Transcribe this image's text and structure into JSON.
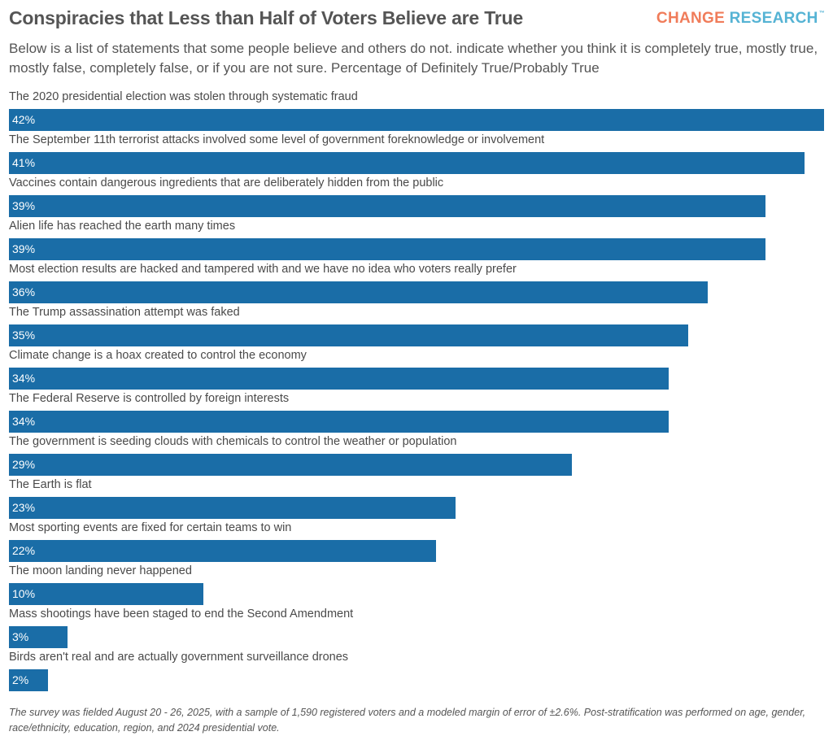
{
  "header": {
    "title": "Conspiracies that Less than Half of Voters Believe are True",
    "logo_word1": "CHANGE",
    "logo_word2": "RESEARCH",
    "logo_tm": "™",
    "subtitle": "Below is a list of statements that some people believe and others do not. indicate whether you think it is completely true, mostly true, mostly false, completely false, or if you are not sure. Percentage of Definitely True/Probably True"
  },
  "chart_data": {
    "type": "bar",
    "orientation": "horizontal",
    "categories": [
      "The 2020 presidential election was stolen through systematic fraud",
      "The September 11th terrorist attacks involved some level of government foreknowledge or involvement",
      "Vaccines contain dangerous ingredients that are deliberately hidden from the public",
      "Alien life has reached the earth many times",
      "Most election results are hacked and tampered with and we have no idea who voters really prefer",
      "The Trump assassination attempt was faked",
      "Climate change is a hoax created to control the economy",
      "The Federal Reserve is controlled by foreign interests",
      "The government is seeding clouds with chemicals to control the weather or population",
      "The Earth is flat",
      "Most sporting events are fixed for certain teams to win",
      "The moon landing never happened",
      "Mass shootings have been staged to end the Second Amendment",
      "Birds aren't real and are actually government surveillance drones"
    ],
    "values": [
      42,
      41,
      39,
      39,
      36,
      35,
      34,
      34,
      29,
      23,
      22,
      10,
      3,
      2
    ],
    "value_labels": [
      "42%",
      "41%",
      "39%",
      "39%",
      "36%",
      "35%",
      "34%",
      "34%",
      "29%",
      "23%",
      "22%",
      "10%",
      "3%",
      "2%"
    ],
    "bar_color": "#1a6da7",
    "xlim": [
      0,
      42
    ],
    "grid": false,
    "legend": false
  },
  "footnote": "The survey was fielded August 20 - 26, 2025, with a sample of 1,590 registered voters and a modeled margin of error of ±2.6%. Post-stratification was performed on age, gender, race/ethnicity, education, region, and 2024 presidential vote."
}
